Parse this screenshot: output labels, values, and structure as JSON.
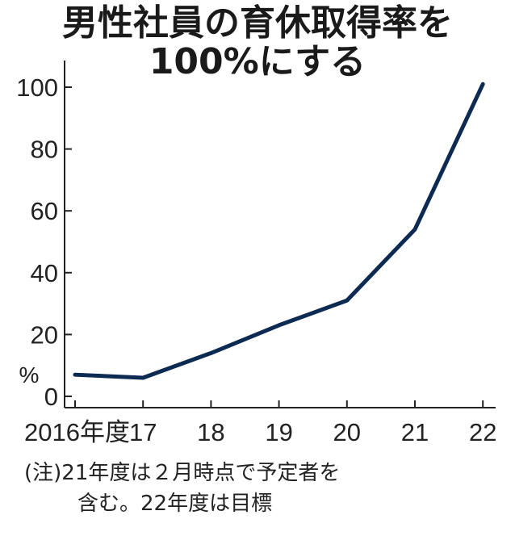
{
  "title_line1": "男性社員の育休取得率を",
  "title_line2": "100%にする",
  "note_line1": "(注)21年度は２月時点で予定者を",
  "note_line2": "含む。22年度は目標",
  "colors": {
    "line": "#0d2a52",
    "axis": "#222222"
  },
  "chart_data": {
    "type": "line",
    "title": "男性社員の育休取得率を100%にする",
    "ylabel": "%",
    "ylim": [
      0,
      100
    ],
    "yticks": [
      0,
      20,
      40,
      60,
      80,
      100
    ],
    "categories": [
      "2016年度",
      "17",
      "18",
      "19",
      "20",
      "21",
      "22"
    ],
    "series": [
      {
        "values": [
          7,
          6,
          14,
          23,
          31,
          54,
          101
        ]
      }
    ],
    "grid": false,
    "legend": "none"
  }
}
